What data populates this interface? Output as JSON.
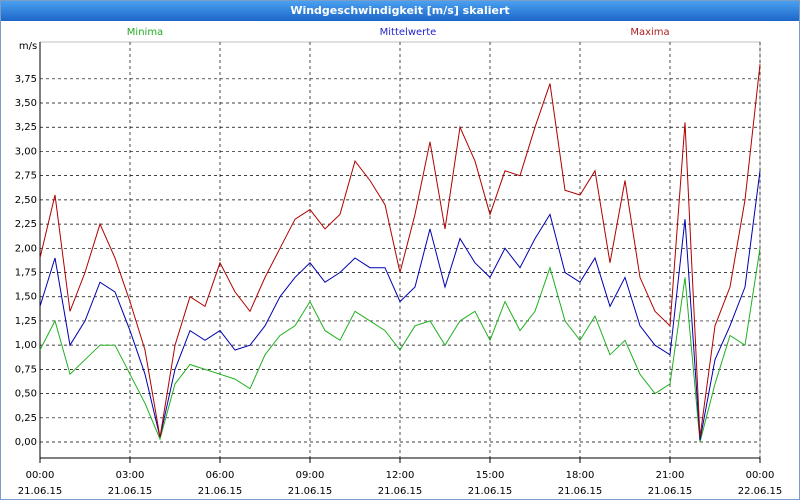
{
  "chart_data": {
    "type": "line",
    "title": "Windgeschwindigkeit [m/s] skaliert",
    "y_label": "m/s",
    "legend": "top",
    "grid": true,
    "xlim": [
      0,
      24
    ],
    "xticks": [
      {
        "value": 0,
        "label": "00:00"
      },
      {
        "value": 3,
        "label": "03:00"
      },
      {
        "value": 6,
        "label": "06:00"
      },
      {
        "value": 9,
        "label": "09:00"
      },
      {
        "value": 12,
        "label": "12:00"
      },
      {
        "value": 15,
        "label": "15:00"
      },
      {
        "value": 18,
        "label": "18:00"
      },
      {
        "value": 21,
        "label": "21:00"
      },
      {
        "value": 24,
        "label": "00:00"
      }
    ],
    "xtick_dates": [
      "21.06.15",
      "21.06.15",
      "21.06.15",
      "21.06.15",
      "21.06.15",
      "21.06.15",
      "21.06.15",
      "21.06.15",
      "22.06.15"
    ],
    "ylim": [
      -0.165,
      4.13
    ],
    "yticks": [
      {
        "value": 0,
        "label": "0,00"
      },
      {
        "value": 0.25,
        "label": "0,25"
      },
      {
        "value": 0.5,
        "label": "0,50"
      },
      {
        "value": 0.75,
        "label": "0,75"
      },
      {
        "value": 1,
        "label": "1,00"
      },
      {
        "value": 1.25,
        "label": "1,25"
      },
      {
        "value": 1.5,
        "label": "1,50"
      },
      {
        "value": 1.75,
        "label": "1,75"
      },
      {
        "value": 2,
        "label": "2,00"
      },
      {
        "value": 2.25,
        "label": "2,25"
      },
      {
        "value": 2.5,
        "label": "2,50"
      },
      {
        "value": 2.75,
        "label": "2,75"
      },
      {
        "value": 3,
        "label": "3,00"
      },
      {
        "value": 3.25,
        "label": "3,25"
      },
      {
        "value": 3.5,
        "label": "3,50"
      },
      {
        "value": 3.75,
        "label": "3,75"
      }
    ],
    "x": [
      0,
      0.5,
      1,
      1.5,
      2,
      2.5,
      3,
      3.5,
      4,
      4.5,
      5,
      5.5,
      6,
      6.5,
      7,
      7.5,
      8,
      8.5,
      9,
      9.5,
      10,
      10.5,
      11,
      11.5,
      12,
      12.5,
      13,
      13.5,
      14,
      14.5,
      15,
      15.5,
      16,
      16.5,
      17,
      17.5,
      18,
      18.5,
      19,
      19.5,
      20,
      20.5,
      21,
      21.5,
      22,
      22.5,
      23,
      23.5,
      24
    ],
    "series": [
      {
        "name": "Minima",
        "color": "#20b020",
        "label_color": "#22aa22",
        "values": [
          0.95,
          1.25,
          0.7,
          0.85,
          1.0,
          1.0,
          0.7,
          0.4,
          0.03,
          0.6,
          0.8,
          0.75,
          0.7,
          0.65,
          0.55,
          0.9,
          1.1,
          1.2,
          1.45,
          1.15,
          1.05,
          1.35,
          1.25,
          1.15,
          0.95,
          1.2,
          1.25,
          1.0,
          1.25,
          1.35,
          1.05,
          1.45,
          1.15,
          1.35,
          1.8,
          1.25,
          1.05,
          1.3,
          0.9,
          1.05,
          0.7,
          0.5,
          0.6,
          1.7,
          0.0,
          0.6,
          1.1,
          1.0,
          2.0
        ]
      },
      {
        "name": "Mittelwerte",
        "color": "#0000b0",
        "label_color": "#2222cc",
        "values": [
          1.4,
          1.9,
          1.0,
          1.25,
          1.65,
          1.55,
          1.15,
          0.7,
          0.05,
          0.75,
          1.15,
          1.05,
          1.15,
          0.95,
          1.0,
          1.2,
          1.5,
          1.7,
          1.85,
          1.65,
          1.75,
          1.9,
          1.8,
          1.8,
          1.45,
          1.6,
          2.2,
          1.6,
          2.1,
          1.85,
          1.7,
          2.0,
          1.8,
          2.1,
          2.35,
          1.75,
          1.65,
          1.9,
          1.4,
          1.7,
          1.2,
          1.0,
          0.9,
          2.3,
          0.02,
          0.85,
          1.2,
          1.6,
          2.8
        ]
      },
      {
        "name": "Maxima",
        "color": "#b00000",
        "label_color": "#aa2222",
        "values": [
          1.9,
          2.55,
          1.35,
          1.75,
          2.25,
          1.9,
          1.45,
          0.95,
          0.05,
          1.0,
          1.5,
          1.4,
          1.85,
          1.55,
          1.35,
          1.7,
          2.0,
          2.3,
          2.4,
          2.2,
          2.35,
          2.9,
          2.7,
          2.45,
          1.75,
          2.35,
          3.1,
          2.2,
          3.25,
          2.9,
          2.35,
          2.8,
          2.75,
          3.25,
          3.7,
          2.6,
          2.55,
          2.8,
          1.85,
          2.7,
          1.7,
          1.35,
          1.2,
          3.3,
          0.05,
          1.2,
          1.6,
          2.5,
          3.9
        ]
      }
    ]
  }
}
